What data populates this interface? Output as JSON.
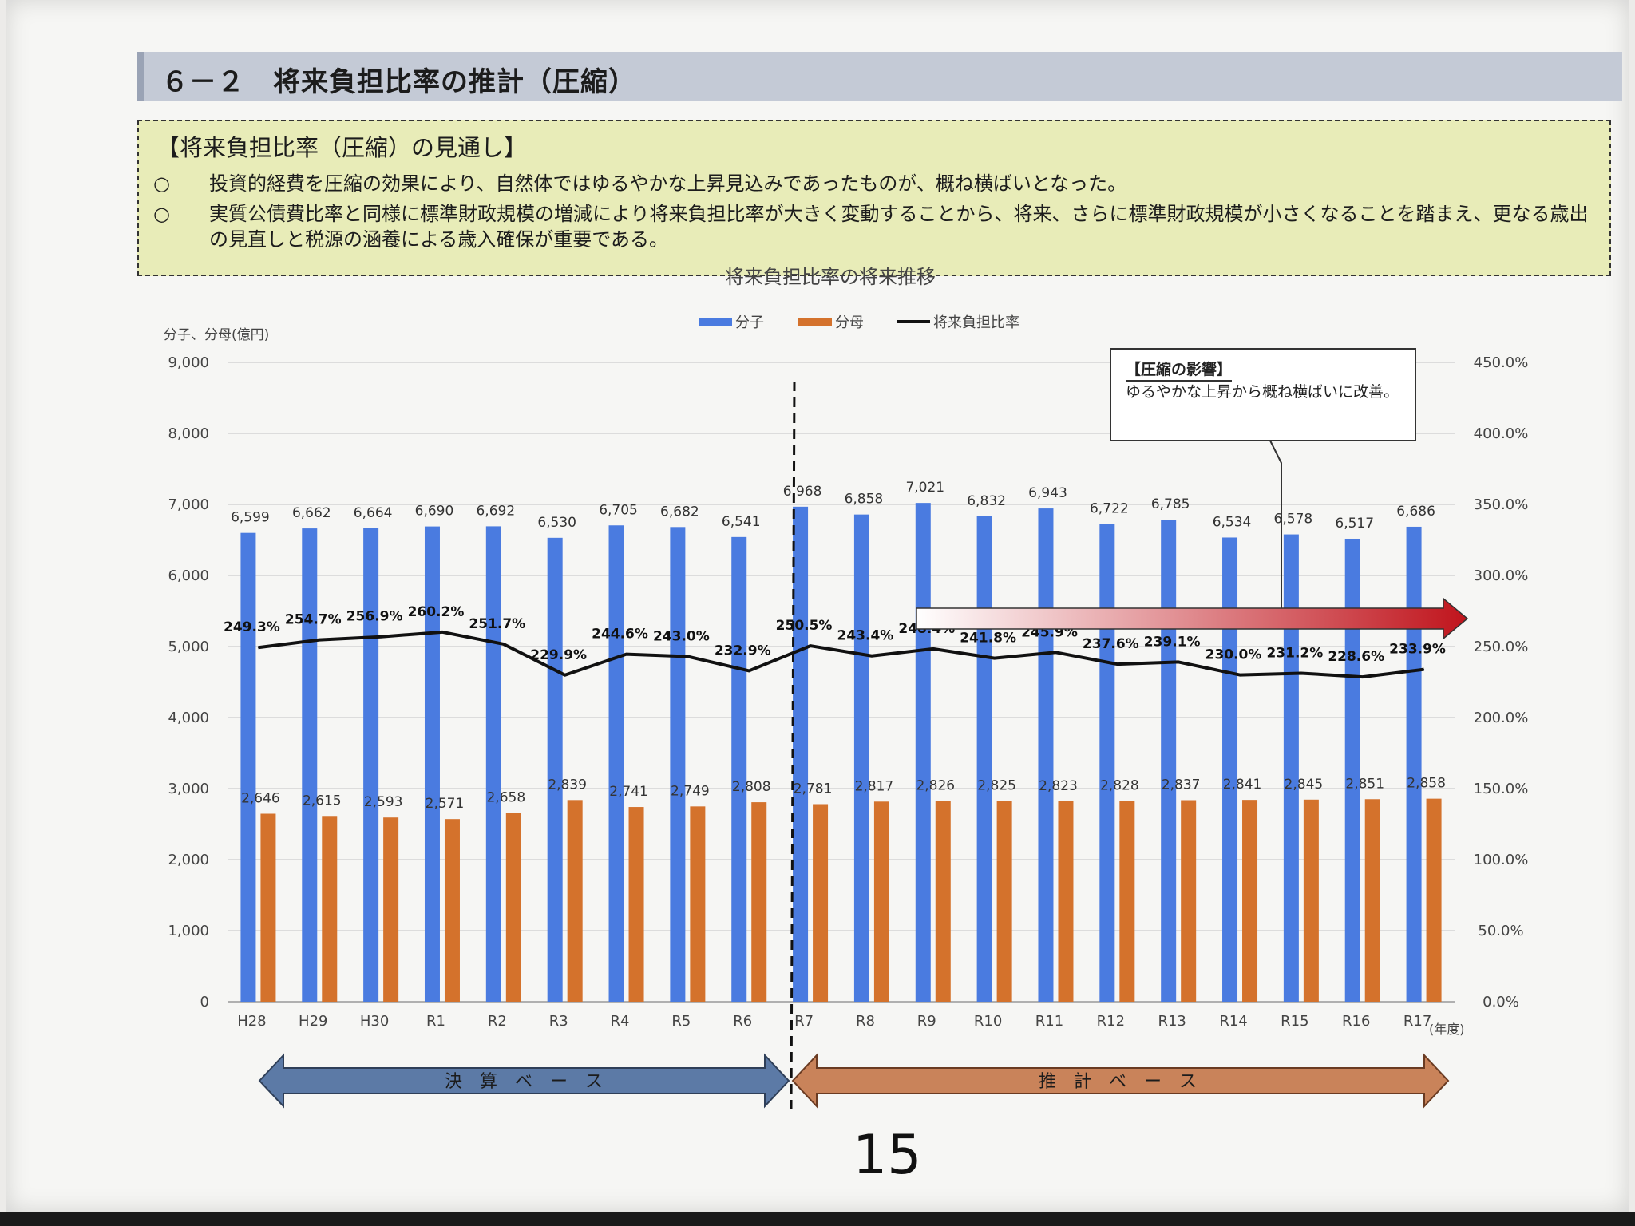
{
  "section": {
    "title": "６－２　将来負担比率の推計（圧縮）"
  },
  "outlook": {
    "heading": "【将来負担比率（圧縮）の見通し】",
    "bullet_symbol": "○",
    "items": [
      "投資的経費を圧縮の効果により、自然体ではゆるやかな上昇見込みであったものが、概ね横ばいとなった。",
      "実質公債費比率と同様に標準財政規模の増減により将来負担比率が大きく変動することから、将来、さらに標準財政規模が小さくなることを踏まえ、更なる歳出の見直しと税源の涵養による歳入確保が重要である。"
    ]
  },
  "annotation": {
    "title": "【圧縮の影響】",
    "text": "ゆるやかな上昇から概ね横ばいに改善。"
  },
  "base_labels": {
    "actual": "決　算　ベ　ー　ス",
    "estimate": "推　計　ベ　ー　ス"
  },
  "page_number": "15",
  "colors": {
    "numerator": "#4a7be0",
    "denominator": "#d4722c",
    "ratio_line": "#111111",
    "actual_arrow": "#5c7aa6",
    "estimate_arrow": "#c9835a",
    "trend_arrow_start": "#ffffff",
    "trend_arrow_end": "#c0141c"
  },
  "chart_data": {
    "type": "bar",
    "title": "将来負担比率の将来推移",
    "ylabel": "分子、分母(億円)",
    "xlabel": "(年度)",
    "ylim": [
      0,
      9000
    ],
    "y_ticks": [
      "0",
      "1,000",
      "2,000",
      "3,000",
      "4,000",
      "5,000",
      "6,000",
      "7,000",
      "8,000",
      "9,000"
    ],
    "y2lim": [
      0,
      450
    ],
    "y2_ticks": [
      "0.0%",
      "50.0%",
      "100.0%",
      "150.0%",
      "200.0%",
      "250.0%",
      "300.0%",
      "350.0%",
      "400.0%",
      "450.0%"
    ],
    "grid": true,
    "legend_position": "top-center",
    "categories": [
      "H28",
      "H29",
      "H30",
      "R1",
      "R2",
      "R3",
      "R4",
      "R5",
      "R6",
      "R7",
      "R8",
      "R9",
      "R10",
      "R11",
      "R12",
      "R13",
      "R14",
      "R15",
      "R16",
      "R17"
    ],
    "series": [
      {
        "name": "分子",
        "type": "bar",
        "values": [
          6599,
          6662,
          6664,
          6690,
          6692,
          6530,
          6705,
          6682,
          6541,
          6968,
          6858,
          7021,
          6832,
          6943,
          6722,
          6785,
          6534,
          6578,
          6517,
          6686
        ],
        "labels": [
          "6,599",
          "6,662",
          "6,664",
          "6,690",
          "6,692",
          "6,530",
          "6,705",
          "6,682",
          "6,541",
          "6,968",
          "6,858",
          "7,021",
          "6,832",
          "6,943",
          "6,722",
          "6,785",
          "6,534",
          "6,578",
          "6,517",
          "6,686"
        ]
      },
      {
        "name": "分母",
        "type": "bar",
        "values": [
          2646,
          2615,
          2593,
          2571,
          2658,
          2839,
          2741,
          2749,
          2808,
          2781,
          2817,
          2826,
          2825,
          2823,
          2828,
          2837,
          2841,
          2845,
          2851,
          2858
        ],
        "labels": [
          "2,646",
          "2,615",
          "2,593",
          "2,571",
          "2,658",
          "2,839",
          "2,741",
          "2,749",
          "2,808",
          "2,781",
          "2,817",
          "2,826",
          "2,825",
          "2,823",
          "2,828",
          "2,837",
          "2,841",
          "2,845",
          "2,851",
          "2,858"
        ]
      },
      {
        "name": "将来負担比率",
        "type": "line",
        "axis": "right",
        "values": [
          249.3,
          254.7,
          256.9,
          260.2,
          251.7,
          229.9,
          244.6,
          243.0,
          232.9,
          250.5,
          243.4,
          248.4,
          241.8,
          245.9,
          237.6,
          239.1,
          230.0,
          231.2,
          228.6,
          233.9
        ],
        "labels": [
          "249.3%",
          "254.7%",
          "256.9%",
          "260.2%",
          "251.7%",
          "229.9%",
          "244.6%",
          "243.0%",
          "232.9%",
          "250.5%",
          "243.4%",
          "248.4%",
          "241.8%",
          "245.9%",
          "237.6%",
          "239.1%",
          "230.0%",
          "231.2%",
          "228.6%",
          "233.9%"
        ]
      }
    ]
  }
}
